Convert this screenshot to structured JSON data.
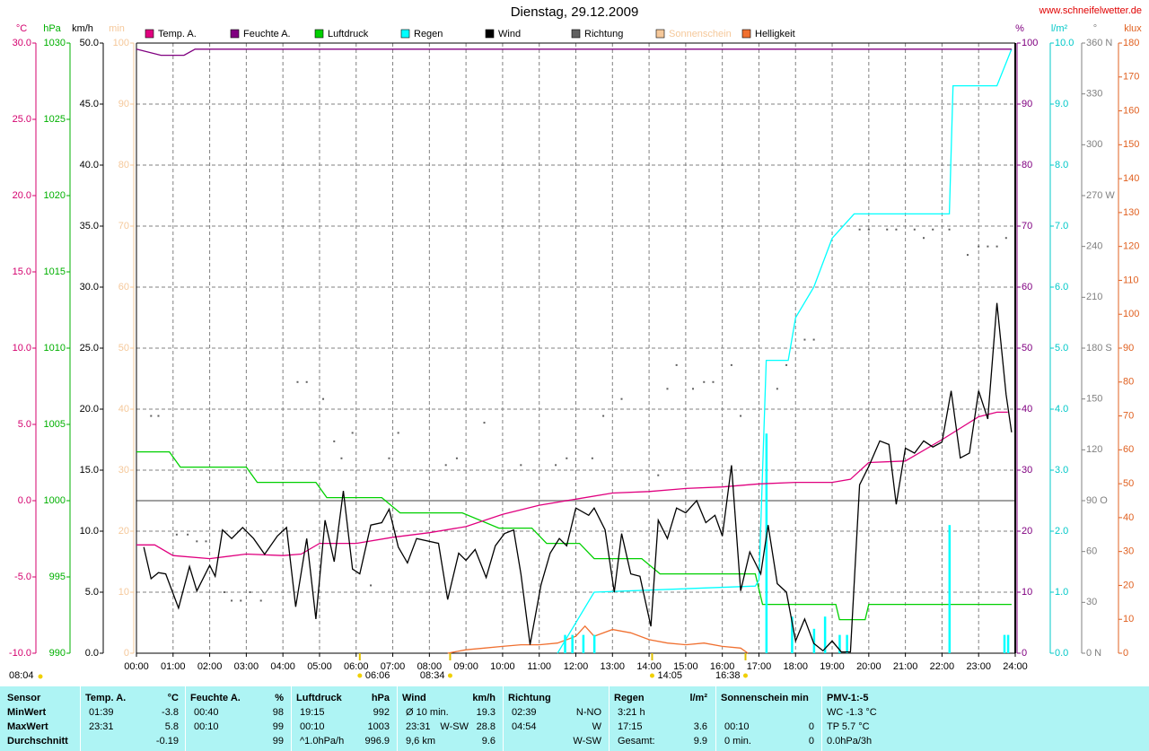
{
  "chart_data": {
    "type": "weather",
    "title": "Dienstag, 29.12.2009",
    "source": "www.schneifelwetter.de",
    "xlim": [
      0,
      24
    ],
    "xticks": [
      {
        "value": 0,
        "label": "00:00"
      },
      {
        "value": 1,
        "label": "01:00"
      },
      {
        "value": 2,
        "label": "02:00"
      },
      {
        "value": 3,
        "label": "03:00"
      },
      {
        "value": 4,
        "label": "04:00"
      },
      {
        "value": 5,
        "label": "05:00"
      },
      {
        "value": 6,
        "label": "06:00"
      },
      {
        "value": 7,
        "label": "07:00"
      },
      {
        "value": 8,
        "label": "08:00"
      },
      {
        "value": 9,
        "label": "09:00"
      },
      {
        "value": 10,
        "label": "10:00"
      },
      {
        "value": 11,
        "label": "11:00"
      },
      {
        "value": 12,
        "label": "12:00"
      },
      {
        "value": 13,
        "label": "13:00"
      },
      {
        "value": 14,
        "label": "14:00"
      },
      {
        "value": 15,
        "label": "15:00"
      },
      {
        "value": 16,
        "label": "16:00"
      },
      {
        "value": 17,
        "label": "17:00"
      },
      {
        "value": 18,
        "label": "18:00"
      },
      {
        "value": 19,
        "label": "19:00"
      },
      {
        "value": 20,
        "label": "20:00"
      },
      {
        "value": 21,
        "label": "21:00"
      },
      {
        "value": 22,
        "label": "22:00"
      },
      {
        "value": 23,
        "label": "23:00"
      },
      {
        "value": 24,
        "label": "24:00"
      }
    ],
    "grid": true,
    "grid_axis": "wind",
    "axes": {
      "temp": {
        "unit": "°C",
        "color": "#d4006e",
        "lim": [
          -10,
          30
        ],
        "ticks": [
          {
            "value": -10,
            "label": "-10.0"
          },
          {
            "value": -5,
            "label": "-5.0"
          },
          {
            "value": 0,
            "label": "0.0"
          },
          {
            "value": 5,
            "label": "5.0"
          },
          {
            "value": 10,
            "label": "10.0"
          },
          {
            "value": 15,
            "label": "15.0"
          },
          {
            "value": 20,
            "label": "20.0"
          },
          {
            "value": 25,
            "label": "25.0"
          },
          {
            "value": 30,
            "label": "30.0"
          }
        ]
      },
      "pres": {
        "unit": "hPa",
        "color": "#00b000",
        "lim": [
          990,
          1030
        ],
        "ticks": [
          990,
          995,
          1000,
          1005,
          1010,
          1015,
          1020,
          1025,
          1030
        ]
      },
      "wind": {
        "unit": "km/h",
        "color": "#000000",
        "lim": [
          0,
          50
        ],
        "ticks": [
          {
            "value": 0,
            "label": "0.0"
          },
          {
            "value": 5,
            "label": "5.0"
          },
          {
            "value": 10,
            "label": "10.0"
          },
          {
            "value": 15,
            "label": "15.0"
          },
          {
            "value": 20,
            "label": "20.0"
          },
          {
            "value": 25,
            "label": "25.0"
          },
          {
            "value": 30,
            "label": "30.0"
          },
          {
            "value": 35,
            "label": "35.0"
          },
          {
            "value": 40,
            "label": "40.0"
          },
          {
            "value": 45,
            "label": "45.0"
          },
          {
            "value": 50,
            "label": "50.0"
          }
        ]
      },
      "sun": {
        "unit": "min",
        "color": "#f5c89a",
        "lim": [
          0,
          100
        ],
        "ticks": [
          0,
          10,
          20,
          30,
          40,
          50,
          60,
          70,
          80,
          90,
          100
        ]
      },
      "hum": {
        "unit": "%",
        "color": "#800080",
        "lim": [
          0,
          100
        ],
        "ticks": [
          0,
          10,
          20,
          30,
          40,
          50,
          60,
          70,
          80,
          90,
          100
        ]
      },
      "rain": {
        "unit": "l/m²",
        "color": "#00c8c8",
        "lim": [
          0,
          10
        ],
        "ticks": [
          {
            "value": 0,
            "label": "0.0"
          },
          {
            "value": 1,
            "label": "1.0"
          },
          {
            "value": 2,
            "label": "2.0"
          },
          {
            "value": 3,
            "label": "3.0"
          },
          {
            "value": 4,
            "label": "4.0"
          },
          {
            "value": 5,
            "label": "5.0"
          },
          {
            "value": 6,
            "label": "6.0"
          },
          {
            "value": 7,
            "label": "7.0"
          },
          {
            "value": 8,
            "label": "8.0"
          },
          {
            "value": 9,
            "label": "9.0"
          },
          {
            "value": 10,
            "label": "10.0"
          }
        ]
      },
      "dir": {
        "unit": "°",
        "color": "#808080",
        "lim": [
          0,
          360
        ],
        "ticks": [
          {
            "value": 0,
            "label": "0 N"
          },
          30,
          60,
          {
            "value": 90,
            "label": "90 O"
          },
          120,
          150,
          {
            "value": 180,
            "label": "180 S"
          },
          210,
          240,
          {
            "value": 270,
            "label": "270 W"
          },
          300,
          330,
          {
            "value": 360,
            "label": "360 N"
          }
        ]
      },
      "lux": {
        "unit": "klux",
        "color": "#e06020",
        "lim": [
          0,
          180
        ],
        "ticks": [
          0,
          10,
          20,
          30,
          40,
          50,
          60,
          70,
          80,
          90,
          100,
          110,
          120,
          130,
          140,
          150,
          160,
          170,
          180
        ]
      }
    },
    "reference_line": {
      "axis": "temp",
      "value": 0,
      "color": "#a0a0a0"
    },
    "series": [
      {
        "name": "Temp. A.",
        "kind": "line",
        "axis": "temp",
        "color": "#e0007f",
        "x": [
          0,
          0.5,
          1,
          2,
          3,
          4,
          4.5,
          5,
          6,
          7,
          8,
          9,
          10,
          11,
          12,
          13,
          14,
          15,
          16,
          17,
          18,
          19,
          19.5,
          20,
          21,
          22,
          23,
          23.5,
          23.8
        ],
        "values": [
          -2.9,
          -2.9,
          -3.6,
          -3.8,
          -3.5,
          -3.6,
          -3.5,
          -2.8,
          -2.8,
          -2.4,
          -2.1,
          -1.7,
          -0.9,
          -0.3,
          0.1,
          0.5,
          0.6,
          0.8,
          0.9,
          1.1,
          1.2,
          1.2,
          1.4,
          2.5,
          2.6,
          4.0,
          5.5,
          5.8,
          5.8
        ]
      },
      {
        "name": "Feuchte A.",
        "kind": "line",
        "axis": "hum",
        "color": "#800080",
        "x": [
          0,
          0.67,
          1.3,
          1.6,
          23.9
        ],
        "values": [
          99,
          98,
          98,
          99,
          99
        ]
      },
      {
        "name": "Luftdruck",
        "kind": "line",
        "axis": "pres",
        "color": "#00d000",
        "x": [
          0,
          0.9,
          1.2,
          3,
          3.3,
          4.9,
          5.2,
          6.7,
          7.2,
          8.9,
          9.9,
          10.8,
          11.2,
          12.1,
          12.5,
          13.8,
          14.3,
          16.9,
          17.1,
          19.1,
          19.2,
          19.9,
          20.0,
          23.9
        ],
        "values": [
          1003.2,
          1003.2,
          1002.2,
          1002.2,
          1001.2,
          1001.2,
          1000.2,
          1000.2,
          999.2,
          999.2,
          998.2,
          998.2,
          997.2,
          997.2,
          996.2,
          996.2,
          995.2,
          995.2,
          993.2,
          993.2,
          992.2,
          992.2,
          993.2,
          993.2
        ]
      },
      {
        "name": "Regen",
        "kind": "line",
        "axis": "rain",
        "color": "#00ffff",
        "x": [
          11.5,
          12.5,
          16.9,
          17.0,
          17.2,
          17.8,
          18.0,
          18.5,
          19.0,
          19.6,
          22.2,
          22.3,
          23.5,
          23.9
        ],
        "values": [
          0,
          1.0,
          1.1,
          1.2,
          4.8,
          4.8,
          5.5,
          6.0,
          6.8,
          7.2,
          7.2,
          9.3,
          9.3,
          9.9
        ],
        "bars": {
          "x": [
            11.7,
            11.9,
            12.2,
            12.5,
            17.2,
            17.9,
            18.5,
            18.8,
            19.2,
            19.4,
            22.2,
            23.7,
            23.8
          ],
          "values": [
            0.3,
            0.3,
            0.3,
            0.3,
            3.6,
            0.6,
            0.4,
            0.6,
            0.3,
            0.3,
            2.1,
            0.3,
            0.3
          ]
        }
      },
      {
        "name": "Wind",
        "kind": "line",
        "axis": "wind",
        "color": "#000000",
        "x": [
          0.2,
          0.4,
          0.6,
          0.8,
          1.15,
          1.45,
          1.65,
          2.0,
          2.15,
          2.35,
          2.6,
          2.9,
          3.2,
          3.5,
          3.85,
          4.1,
          4.35,
          4.65,
          4.9,
          5.15,
          5.4,
          5.65,
          5.9,
          6.1,
          6.4,
          6.7,
          6.9,
          7.15,
          7.4,
          7.65,
          8.25,
          8.5,
          8.8,
          9.0,
          9.25,
          9.55,
          9.8,
          10.05,
          10.3,
          10.5,
          10.75,
          11.05,
          11.3,
          11.55,
          11.75,
          12.0,
          12.35,
          12.5,
          12.8,
          13.05,
          13.25,
          13.5,
          13.75,
          14.05,
          14.25,
          14.5,
          14.75,
          15.0,
          15.3,
          15.55,
          15.8,
          16.0,
          16.25,
          16.5,
          16.75,
          17.05,
          17.25,
          17.5,
          17.75,
          18.0,
          18.25,
          18.5,
          18.75,
          19.0,
          19.25,
          19.5,
          19.75,
          20.0,
          20.3,
          20.55,
          20.75,
          21.0,
          21.25,
          21.5,
          21.75,
          22.0,
          22.25,
          22.5,
          22.75,
          23.0,
          23.25,
          23.5,
          23.75,
          23.9
        ],
        "values": [
          8.7,
          6.1,
          6.6,
          6.5,
          3.7,
          7.1,
          5.1,
          7.2,
          6.3,
          10.1,
          9.4,
          10.3,
          9.4,
          8.1,
          9.6,
          10.3,
          3.8,
          9.4,
          2.8,
          10.9,
          7.5,
          13.3,
          6.9,
          6.5,
          10.5,
          10.7,
          11.8,
          8.7,
          7.4,
          9.4,
          9.0,
          4.4,
          8.2,
          7.6,
          8.5,
          6.2,
          8.8,
          9.8,
          10.1,
          6.5,
          0.7,
          5.6,
          8.2,
          9.4,
          8.8,
          11.9,
          11.3,
          11.9,
          10.1,
          5.0,
          9.8,
          6.5,
          6.3,
          2.2,
          10.9,
          9.4,
          11.9,
          11.5,
          12.5,
          10.7,
          11.3,
          9.6,
          15.4,
          5.1,
          8.3,
          6.5,
          10.5,
          5.7,
          5.0,
          1.0,
          2.8,
          0.8,
          0.2,
          1.0,
          0.1,
          0.1,
          13.8,
          15.3,
          17.4,
          17.1,
          12.2,
          16.8,
          16.4,
          17.4,
          16.9,
          17.3,
          21.5,
          16.0,
          16.4,
          21.5,
          19.2,
          28.7,
          21.2,
          18.1
        ]
      },
      {
        "name": "Richtung",
        "kind": "scatter",
        "axis": "dir",
        "color": "#606060",
        "x": [
          0.4,
          0.6,
          1.1,
          1.4,
          1.65,
          1.9,
          2.4,
          2.6,
          2.85,
          3.1,
          3.4,
          4.4,
          4.65,
          5.1,
          5.4,
          5.6,
          5.9,
          6.4,
          6.9,
          7.15,
          8.45,
          8.75,
          9.5,
          10.5,
          11.45,
          11.75,
          12.45,
          12.75,
          13.25,
          14.25,
          14.5,
          14.75,
          15.2,
          15.5,
          15.75,
          16.25,
          16.5,
          17.5,
          17.75,
          18.25,
          18.5,
          19.75,
          20.0,
          20.5,
          20.75,
          21.25,
          21.5,
          21.75,
          22.2,
          22.7,
          23.0,
          23.25,
          23.5,
          23.75
        ],
        "values": [
          140,
          140,
          70,
          70,
          66,
          66,
          36,
          31,
          31,
          36,
          31,
          160,
          160,
          150,
          125,
          115,
          130,
          40,
          115,
          130,
          111,
          115,
          136,
          111,
          111,
          115,
          115,
          140,
          150,
          105,
          156,
          170,
          156,
          160,
          160,
          170,
          140,
          156,
          170,
          185,
          185,
          250,
          250,
          250,
          250,
          250,
          245,
          250,
          250,
          235,
          240,
          240,
          240,
          245
        ]
      },
      {
        "name": "Sonnenschein",
        "kind": "line",
        "axis": "sun",
        "color": "#f5c89a",
        "x": [],
        "values": []
      },
      {
        "name": "Helligkeit",
        "kind": "line",
        "axis": "lux",
        "color": "#f07030",
        "x": [
          8.5,
          9,
          9.5,
          10,
          10.5,
          11,
          11.5,
          12,
          12.25,
          12.5,
          13,
          13.5,
          14,
          14.5,
          15,
          15.5,
          16,
          16.5,
          16.7
        ],
        "values": [
          0,
          1,
          1.5,
          2,
          2.5,
          2.5,
          3,
          5,
          8,
          5,
          7,
          6,
          4,
          3,
          2.5,
          3,
          2,
          1.5,
          0
        ]
      }
    ],
    "sun_times": [
      {
        "label": "06:06",
        "x": 6.1,
        "anchor": "start"
      },
      {
        "label": "08:34",
        "x": 8.567,
        "anchor": "end"
      },
      {
        "label": "14:05",
        "x": 14.083,
        "anchor": "start"
      },
      {
        "label": "16:38",
        "x": 16.633,
        "anchor": "end"
      }
    ],
    "day_length": "08:04"
  },
  "table": {
    "row_header": "Sensor",
    "row_labels": [
      "MinWert",
      "MaxWert",
      "Durchschnitt"
    ],
    "columns": [
      {
        "title": "Temp. A.",
        "unit": "°C",
        "rows": [
          [
            "01:39",
            "-3.8"
          ],
          [
            "23:31",
            "5.8"
          ],
          [
            null,
            "-0.19"
          ]
        ]
      },
      {
        "title": "Feuchte A.",
        "unit": "%",
        "rows": [
          [
            "00:40",
            "98"
          ],
          [
            "00:10",
            "99"
          ],
          [
            null,
            "99"
          ]
        ]
      },
      {
        "title": "Luftdruck",
        "unit": "hPa",
        "rows": [
          [
            "19:15",
            "992"
          ],
          [
            "00:10",
            "1003"
          ],
          [
            "^1.0hPa/h",
            "996.9"
          ]
        ]
      },
      {
        "title": "Wind",
        "unit": "km/h",
        "rows": [
          [
            "Ø 10 min.",
            "19.3"
          ],
          [
            "23:31",
            "W-SW",
            "28.8"
          ],
          [
            "9,6 km",
            "9.6"
          ]
        ]
      },
      {
        "title": "Richtung",
        "unit": null,
        "rows": [
          [
            "02:39",
            "N-NO"
          ],
          [
            "04:54",
            "W"
          ],
          [
            null,
            "W-SW"
          ]
        ]
      },
      {
        "title": "Regen",
        "unit": "l/m²",
        "rows": [
          [
            "3:21 h",
            null
          ],
          [
            "17:15",
            "3.6"
          ],
          [
            "Gesamt:",
            "9.9"
          ]
        ]
      },
      {
        "title": "Sonnenschein min",
        "unit": null,
        "rows": [
          [
            null,
            null
          ],
          [
            "00:10",
            "0"
          ],
          [
            "0 min.",
            "0"
          ]
        ]
      },
      {
        "title": "PMV-1:-5",
        "unit": null,
        "rows": [
          [
            "WC -1.3 °C"
          ],
          [
            "TP 5.7 °C"
          ],
          [
            "0.0hPa/3h"
          ]
        ]
      }
    ]
  }
}
